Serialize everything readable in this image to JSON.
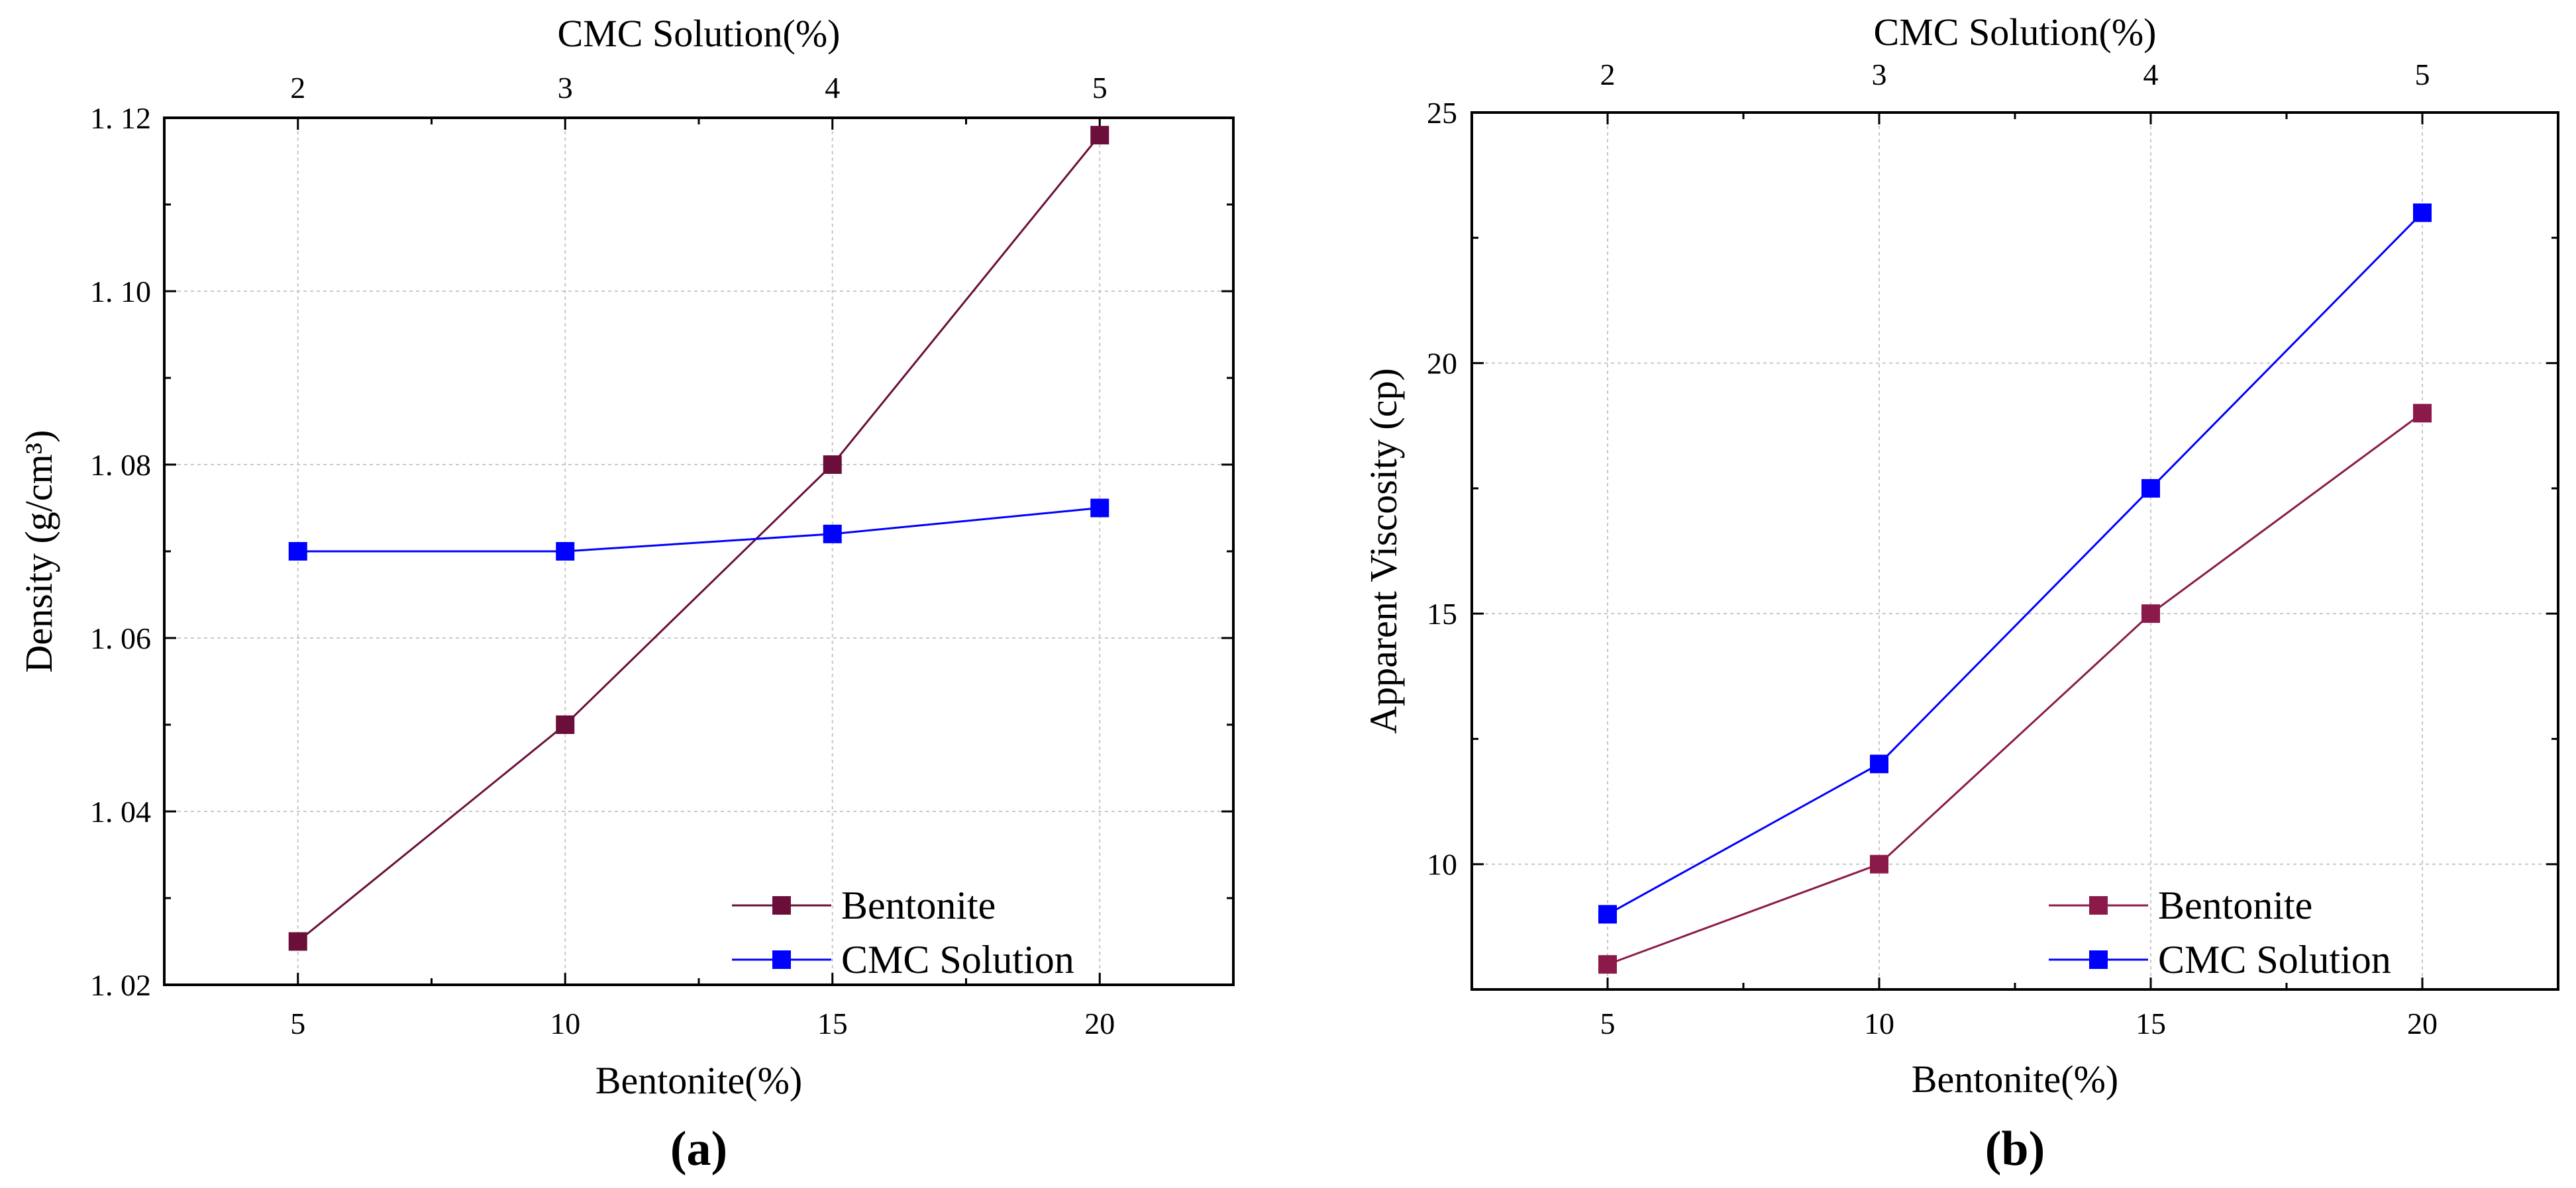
{
  "chart_data": [
    {
      "type": "line",
      "panel_label": "(a)",
      "title": "",
      "xlabel": "Bentonite(%)",
      "x2label": "CMC Solution(%)",
      "ylabel": "Density (g/cm³)",
      "x": [
        5,
        10,
        15,
        20
      ],
      "x2": [
        2,
        3,
        4,
        5
      ],
      "xlim": [
        2.5,
        22.5
      ],
      "ylim": [
        1.02,
        1.12
      ],
      "xticks": [
        5,
        10,
        15,
        20
      ],
      "x2ticks": [
        "2",
        "3",
        "4",
        "5"
      ],
      "yticks": [
        1.02,
        1.04,
        1.06,
        1.08,
        1.1,
        1.12
      ],
      "ytick_labels": [
        "1. 02",
        "1. 04",
        "1. 06",
        "1. 08",
        "1. 10",
        "1. 12"
      ],
      "grid": true,
      "legend_position": "bottom-right",
      "series": [
        {
          "name": "Bentonite",
          "values": [
            1.025,
            1.05,
            1.08,
            1.118
          ],
          "color": "#6b0f3a"
        },
        {
          "name": "CMC Solution",
          "values": [
            1.07,
            1.07,
            1.072,
            1.075
          ],
          "color": "#0000ff"
        }
      ]
    },
    {
      "type": "line",
      "panel_label": "(b)",
      "title": "",
      "xlabel": "Bentonite(%)",
      "x2label": "CMC Solution(%)",
      "ylabel": "Apparent Viscosity (cp)",
      "x": [
        5,
        10,
        15,
        20
      ],
      "x2": [
        2,
        3,
        4,
        5
      ],
      "xlim": [
        2.5,
        22.5
      ],
      "ylim": [
        7.5,
        25
      ],
      "xticks": [
        5,
        10,
        15,
        20
      ],
      "x2ticks": [
        "2",
        "3",
        "4",
        "5"
      ],
      "yticks": [
        10,
        15,
        20,
        25
      ],
      "ytick_labels": [
        "10",
        "15",
        "20",
        "25"
      ],
      "grid": true,
      "legend_position": "bottom-right",
      "series": [
        {
          "name": "Bentonite",
          "values": [
            8,
            10,
            15,
            19
          ],
          "color": "#8b1a4a"
        },
        {
          "name": "CMC Solution",
          "values": [
            9,
            12,
            17.5,
            23
          ],
          "color": "#0000ff"
        }
      ]
    }
  ]
}
